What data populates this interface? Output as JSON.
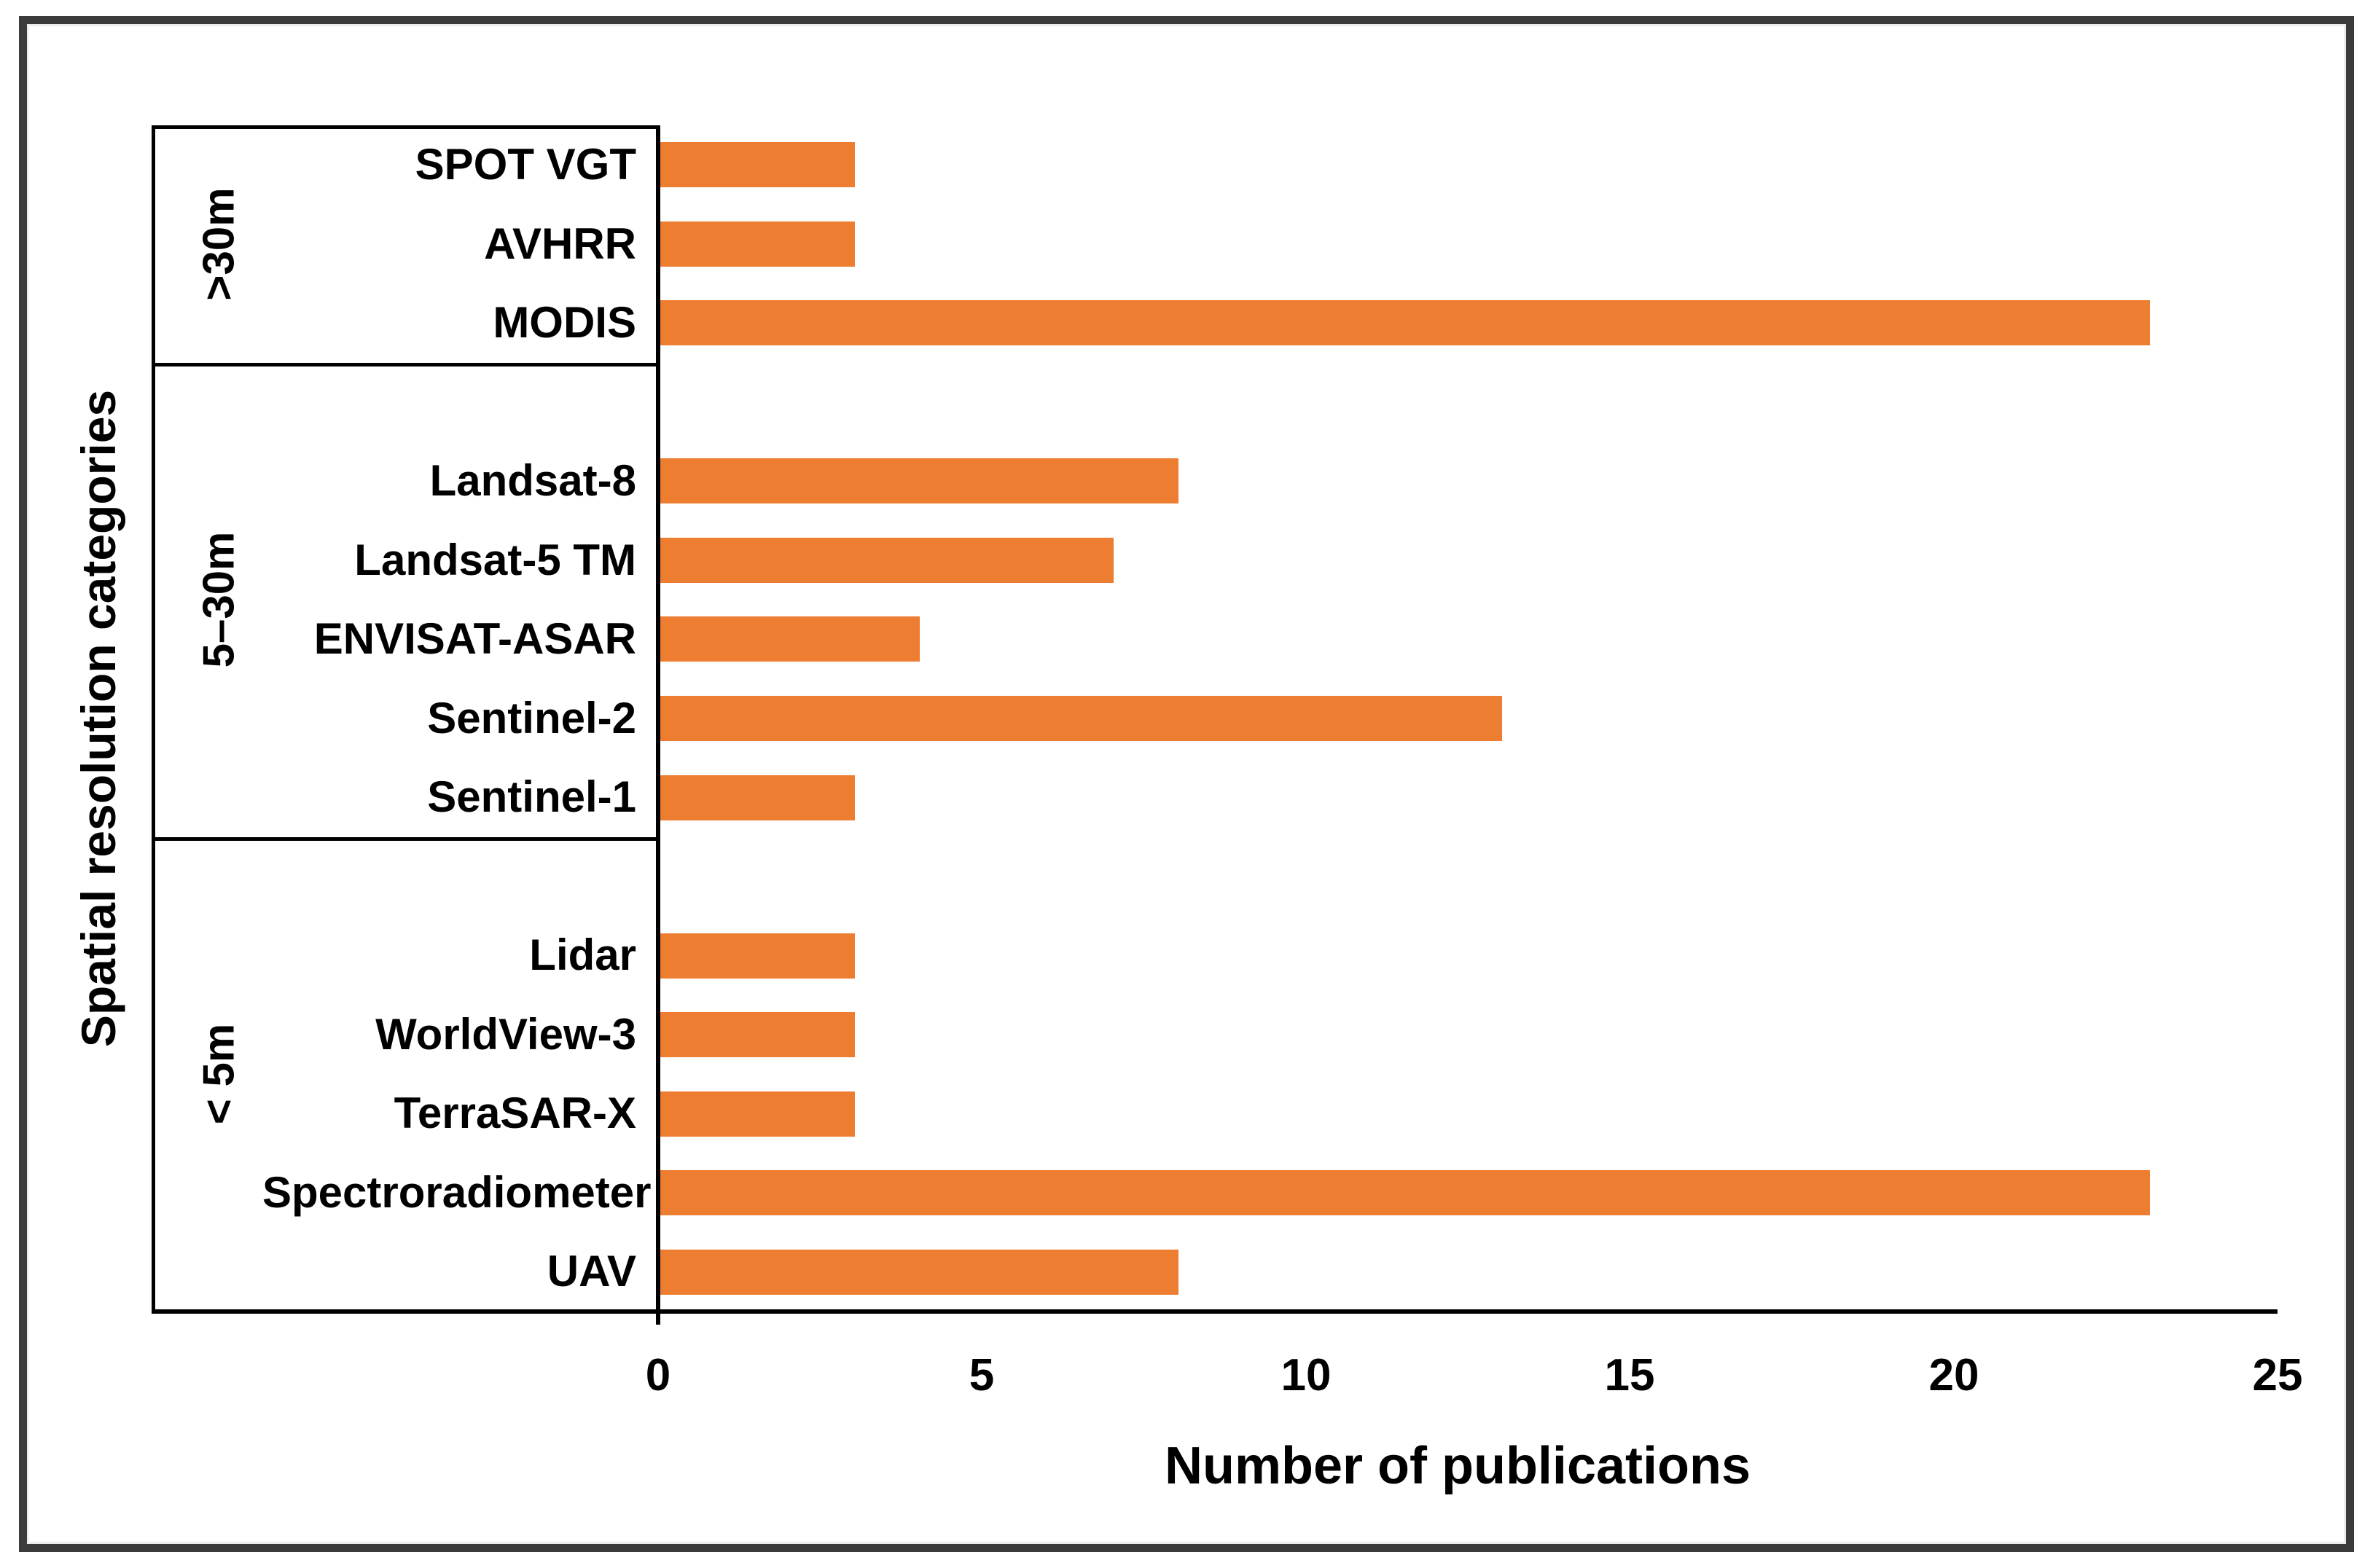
{
  "chart_data": {
    "type": "bar",
    "orientation": "horizontal",
    "xlabel": "Number of publications",
    "ylabel": "Spatial resolution categories",
    "xlim": [
      0,
      25
    ],
    "xticks": [
      "0",
      "5",
      "10",
      "15",
      "20",
      "25"
    ],
    "grid": false,
    "legend": "none",
    "bar_color": "#ED7D31",
    "line_color": "#000000",
    "frame_color": "#3b3b3b",
    "groups": [
      {
        "label": ">30m",
        "categories": [
          "SPOT VGT",
          "AVHRR",
          "MODIS"
        ],
        "values": [
          3,
          3,
          23
        ]
      },
      {
        "label": "5–30m",
        "categories": [
          "Landsat-8",
          "Landsat-5 TM",
          "ENVISAT-ASAR",
          "Sentinel-2",
          "Sentinel-1"
        ],
        "values": [
          8,
          7,
          4,
          13,
          3
        ]
      },
      {
        "label": "< 5m",
        "categories": [
          "Lidar",
          "WorldView-3",
          "TerraSAR-X",
          "Spectroradiometer",
          "UAV"
        ],
        "values": [
          3,
          3,
          3,
          23,
          8
        ]
      }
    ]
  }
}
